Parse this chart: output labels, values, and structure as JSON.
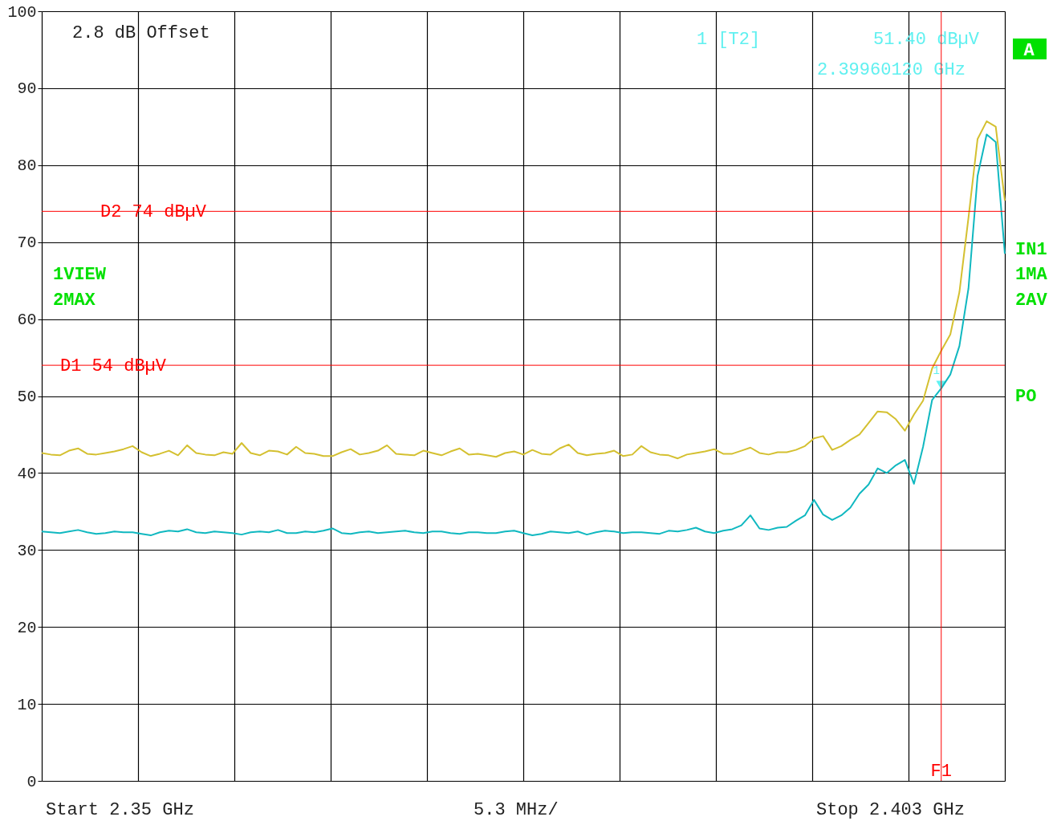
{
  "chart_data": {
    "type": "line",
    "categories": [
      null,
      null,
      null,
      null,
      null,
      null,
      null,
      null,
      null,
      null,
      null,
      null,
      null,
      null,
      null,
      null,
      null,
      null,
      null,
      null,
      null,
      null,
      null,
      null,
      null,
      null,
      null,
      null,
      null,
      null,
      null,
      null,
      null,
      null,
      null,
      null,
      null,
      null,
      null,
      null,
      null,
      null,
      null,
      null,
      null,
      null,
      null,
      null,
      null,
      null,
      null,
      null,
      null,
      null,
      null,
      null,
      null,
      null,
      null,
      null,
      null,
      null,
      null,
      null,
      null,
      null,
      null,
      null,
      null,
      null,
      null,
      null,
      null,
      null,
      null,
      null,
      null,
      null,
      null,
      null,
      null,
      null,
      null,
      null,
      null,
      null,
      null,
      null,
      null,
      null,
      null,
      null,
      null,
      null,
      null,
      null,
      null,
      null,
      null,
      null,
      null,
      null,
      null,
      null,
      null,
      null,
      null
    ],
    "ylim": [
      0,
      100
    ],
    "yticks": [
      0,
      10,
      20,
      30,
      40,
      50,
      60,
      70,
      80,
      90,
      100
    ],
    "tick_labels": "y",
    "grid": true,
    "line_style": "solid",
    "series": [
      {
        "color": "#d4c030",
        "values": [
          42.6,
          42.4,
          42.3,
          42.9,
          43.2,
          42.5,
          42.4,
          42.6,
          42.8,
          43.1,
          43.5,
          42.7,
          42.2,
          42.5,
          42.9,
          42.3,
          43.6,
          42.6,
          42.4,
          42.3,
          42.7,
          42.5,
          43.9,
          42.6,
          42.3,
          42.9,
          42.8,
          42.4,
          43.4,
          42.6,
          42.5,
          42.2,
          42.2,
          42.7,
          43.1,
          42.4,
          42.6,
          42.9,
          43.6,
          42.5,
          42.4,
          42.3,
          42.9,
          42.6,
          42.3,
          42.8,
          43.2,
          42.4,
          42.5,
          42.3,
          42.1,
          42.6,
          42.8,
          42.4,
          43.0,
          42.5,
          42.4,
          43.2,
          43.7,
          42.6,
          42.3,
          42.5,
          42.6,
          42.9,
          42.2,
          42.4,
          43.5,
          42.7,
          42.4,
          42.3,
          41.9,
          42.4,
          42.6,
          42.8,
          43.1,
          42.5,
          42.5,
          42.9,
          43.3,
          42.6,
          42.4,
          42.7,
          42.7,
          43.0,
          43.5,
          44.5,
          44.8,
          43.0,
          43.5,
          44.3,
          45.0,
          46.5,
          48.0,
          47.9,
          47.0,
          45.5,
          47.6,
          49.4,
          53.6,
          55.9,
          58.0,
          63.5,
          73.2,
          83.4,
          85.7,
          85.0,
          75.4
        ]
      },
      {
        "type": "scatter",
        "marker": "triangle",
        "color": "#60f0f0",
        "values": [
          null,
          null,
          null,
          null,
          null,
          null,
          null,
          null,
          null,
          null,
          null,
          null,
          null,
          null,
          null,
          null,
          null,
          null,
          null,
          null,
          null,
          null,
          null,
          null,
          null,
          null,
          null,
          null,
          null,
          null,
          null,
          null,
          null,
          null,
          null,
          null,
          null,
          null,
          null,
          null,
          null,
          null,
          null,
          null,
          null,
          null,
          null,
          null,
          null,
          null,
          null,
          null,
          null,
          null,
          null,
          null,
          null,
          null,
          null,
          null,
          null,
          null,
          null,
          null,
          null,
          null,
          null,
          null,
          null,
          null,
          null,
          null,
          null,
          null,
          null,
          null,
          null,
          null,
          null,
          null,
          null,
          null,
          null,
          null,
          null,
          null,
          null,
          null,
          null,
          null,
          null,
          null,
          null,
          null,
          null,
          null,
          null,
          null,
          null,
          51.4,
          null,
          null,
          null,
          null,
          null,
          null,
          null
        ]
      },
      {
        "color": "#10b8c0",
        "values": [
          32.4,
          32.3,
          32.2,
          32.4,
          32.6,
          32.3,
          32.1,
          32.2,
          32.4,
          32.3,
          32.3,
          32.1,
          31.9,
          32.3,
          32.5,
          32.4,
          32.7,
          32.3,
          32.2,
          32.4,
          32.3,
          32.2,
          32.0,
          32.3,
          32.4,
          32.3,
          32.6,
          32.2,
          32.2,
          32.4,
          32.3,
          32.5,
          32.8,
          32.2,
          32.1,
          32.3,
          32.4,
          32.2,
          32.3,
          32.4,
          32.5,
          32.3,
          32.2,
          32.4,
          32.4,
          32.2,
          32.1,
          32.3,
          32.3,
          32.2,
          32.2,
          32.4,
          32.5,
          32.2,
          31.9,
          32.1,
          32.4,
          32.3,
          32.2,
          32.4,
          32.0,
          32.3,
          32.5,
          32.4,
          32.2,
          32.3,
          32.3,
          32.2,
          32.1,
          32.5,
          32.4,
          32.6,
          32.9,
          32.4,
          32.2,
          32.5,
          32.7,
          33.2,
          34.5,
          32.8,
          32.6,
          32.9,
          33.0,
          33.8,
          34.5,
          36.5,
          34.6,
          33.9,
          34.5,
          35.5,
          37.3,
          38.5,
          40.6,
          40.0,
          41.0,
          41.7,
          38.6,
          43.4,
          49.5,
          51.0,
          52.8,
          56.5,
          64.0,
          78.6,
          84.0,
          83.0,
          68.5
        ]
      }
    ],
    "ref_lines": [
      {
        "axis": "y",
        "value": 74,
        "label": "D2 74 dBµV",
        "color": "#ff0000"
      },
      {
        "axis": "y",
        "value": 54,
        "label": "D1 54 dBµV",
        "color": "#ff0000"
      }
    ],
    "annotations": [
      "2.8 dB Offset",
      "1 [T2]",
      "51.40 dBµV",
      "2.39960120 GHz",
      "A",
      "1VIEW",
      "2MAX",
      "IN1",
      "1MA",
      "2AV",
      "PO",
      "Start 2.35 GHz",
      "5.3 MHz/",
      "Stop 2.403 GHz",
      "F1",
      "1"
    ]
  }
}
